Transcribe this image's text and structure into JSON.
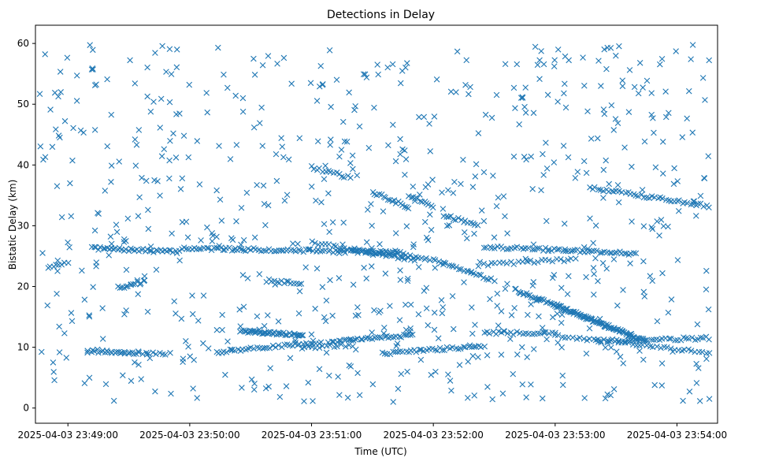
{
  "chart_data": {
    "type": "scatter",
    "title": "Detections in Delay",
    "xlabel": "Time (UTC)",
    "ylabel": "Bistatic Delay (km)",
    "marker": "x",
    "color": "#1f77b4",
    "x_unit": "seconds after 2025-04-03 23:48:00 UTC",
    "xlim": [
      44,
      380
    ],
    "ylim": [
      -2.5,
      63
    ],
    "x_ticks": [
      {
        "value": 60,
        "label": "2025-04-03 23:49:00"
      },
      {
        "value": 120,
        "label": "2025-04-03 23:50:00"
      },
      {
        "value": 180,
        "label": "2025-04-03 23:51:00"
      },
      {
        "value": 240,
        "label": "2025-04-03 23:52:00"
      },
      {
        "value": 300,
        "label": "2025-04-03 23:53:00"
      },
      {
        "value": 360,
        "label": "2025-04-03 23:54:00"
      }
    ],
    "y_ticks": [
      {
        "value": 0,
        "label": "0"
      },
      {
        "value": 10,
        "label": "10"
      },
      {
        "value": 20,
        "label": "20"
      },
      {
        "value": 30,
        "label": "30"
      },
      {
        "value": 40,
        "label": "40"
      },
      {
        "value": 50,
        "label": "50"
      },
      {
        "value": 60,
        "label": "60"
      }
    ],
    "tracks": [
      {
        "t0": 72,
        "t1": 115,
        "y0": 26.3,
        "y1": 25.7,
        "n": 42
      },
      {
        "t0": 116,
        "t1": 225,
        "y0": 26.3,
        "y1": 25.6,
        "n": 90
      },
      {
        "t0": 180,
        "t1": 231,
        "y0": 27.3,
        "y1": 24.3,
        "n": 30
      },
      {
        "t0": 200,
        "t1": 238,
        "y0": 26.1,
        "y1": 24.5,
        "n": 30
      },
      {
        "t0": 240,
        "t1": 270,
        "y0": 24.5,
        "y1": 21.0,
        "n": 25
      },
      {
        "t0": 180,
        "t1": 199,
        "y0": 39.6,
        "y1": 37.9,
        "n": 15
      },
      {
        "t0": 210,
        "t1": 228,
        "y0": 35.5,
        "y1": 33.0,
        "n": 18
      },
      {
        "t0": 228,
        "t1": 240,
        "y0": 35.0,
        "y1": 33.0,
        "n": 12
      },
      {
        "t0": 245,
        "t1": 262,
        "y0": 31.8,
        "y1": 30.0,
        "n": 15
      },
      {
        "t0": 317,
        "t1": 376,
        "y0": 36.3,
        "y1": 33.2,
        "n": 45
      },
      {
        "t0": 265,
        "t1": 305,
        "y0": 26.5,
        "y1": 26.0,
        "n": 30
      },
      {
        "t0": 305,
        "t1": 340,
        "y0": 26.0,
        "y1": 25.4,
        "n": 30
      },
      {
        "t0": 265,
        "t1": 310,
        "y0": 23.6,
        "y1": 24.5,
        "n": 25
      },
      {
        "t0": 280,
        "t1": 345,
        "y0": 19.5,
        "y1": 11.0,
        "n": 80
      },
      {
        "t0": 300,
        "t1": 340,
        "y0": 17.0,
        "y1": 11.5,
        "n": 40
      },
      {
        "t0": 320,
        "t1": 376,
        "y0": 11.0,
        "y1": 11.5,
        "n": 40
      },
      {
        "t0": 300,
        "t1": 376,
        "y0": 12.0,
        "y1": 9.0,
        "n": 45
      },
      {
        "t0": 70,
        "t1": 110,
        "y0": 9.2,
        "y1": 9.0,
        "n": 25
      },
      {
        "t0": 133,
        "t1": 185,
        "y0": 9.2,
        "y1": 10.8,
        "n": 40
      },
      {
        "t0": 145,
        "t1": 176,
        "y0": 12.7,
        "y1": 12.0,
        "n": 45
      },
      {
        "t0": 190,
        "t1": 230,
        "y0": 11.0,
        "y1": 12.0,
        "n": 35
      },
      {
        "t0": 215,
        "t1": 265,
        "y0": 9.0,
        "y1": 10.2,
        "n": 40
      },
      {
        "t0": 175,
        "t1": 200,
        "y0": 10.0,
        "y1": 10.3,
        "n": 15
      },
      {
        "t0": 265,
        "t1": 300,
        "y0": 12.4,
        "y1": 12.3,
        "n": 25
      },
      {
        "t0": 70,
        "t1": 95,
        "y0": 9.5,
        "y1": 9.0,
        "n": 12
      },
      {
        "t0": 85,
        "t1": 98,
        "y0": 19.8,
        "y1": 20.8,
        "n": 15
      },
      {
        "t0": 158,
        "t1": 175,
        "y0": 21.0,
        "y1": 20.5,
        "n": 15
      },
      {
        "t0": 50,
        "t1": 60,
        "y0": 23.3,
        "y1": 23.8,
        "n": 8
      }
    ],
    "noise": {
      "t0": 46,
      "t1": 376,
      "y0": 0.8,
      "y1": 59.8,
      "n": 720,
      "seed": 7
    }
  }
}
